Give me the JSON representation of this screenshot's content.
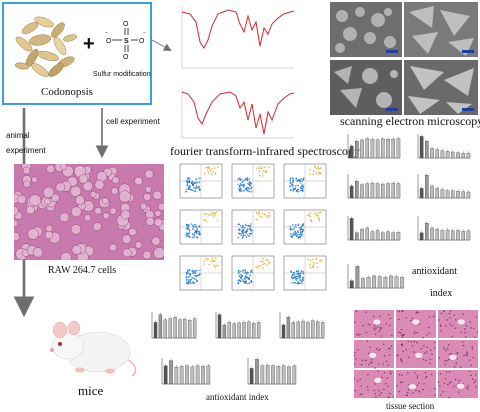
{
  "labels": {
    "codonopsis": "Codonopsis",
    "sulfur_modification": "Sulfur modification",
    "sem": "scanning electron microscopy",
    "ftir": "fourier transform-infrared spectroscopy",
    "cell_experiment": "cell experiment",
    "animal_experiment_line1": "animal",
    "animal_experiment_line2": "experiment",
    "raw_cells": "RAW 264.7 cells",
    "mice": "mice",
    "antioxidant_index_bottom": "antioxidant index",
    "antioxidant_index_right_line1": "antioxidant",
    "antioxidant_index_right_line2": "index",
    "tissue_section": "tissue section",
    "plus_sign": "+"
  },
  "colors": {
    "box_border": "#3aa0dc",
    "spectrum_line": "#d9262b",
    "arrow": "#6f6f6f",
    "cells_bg": "#c879ad",
    "tissue_bg": "#d98bb6"
  }
}
